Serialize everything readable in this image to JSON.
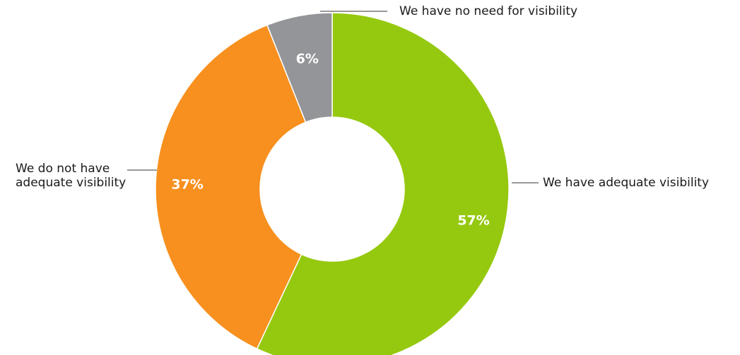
{
  "chart_data": {
    "type": "pie",
    "donut": true,
    "title": "",
    "slices": [
      {
        "label": "We have adequate visibility",
        "label_lines": [
          "We have adequate visibility"
        ],
        "value": 57,
        "value_label": "57%",
        "color": "#95c90f"
      },
      {
        "label": "We do not have adequate visibility",
        "label_lines": [
          "We do not have",
          "adequate visibility"
        ],
        "value": 37,
        "value_label": "37%",
        "color": "#f7901e"
      },
      {
        "label": "We have no need for visibility",
        "label_lines": [
          "We have no need for visibility"
        ],
        "value": 6,
        "value_label": "6%",
        "color": "#939598"
      }
    ],
    "start_at": "12 o'clock",
    "direction": "clockwise",
    "legend": "none",
    "label_placement": "outside with leader lines"
  }
}
